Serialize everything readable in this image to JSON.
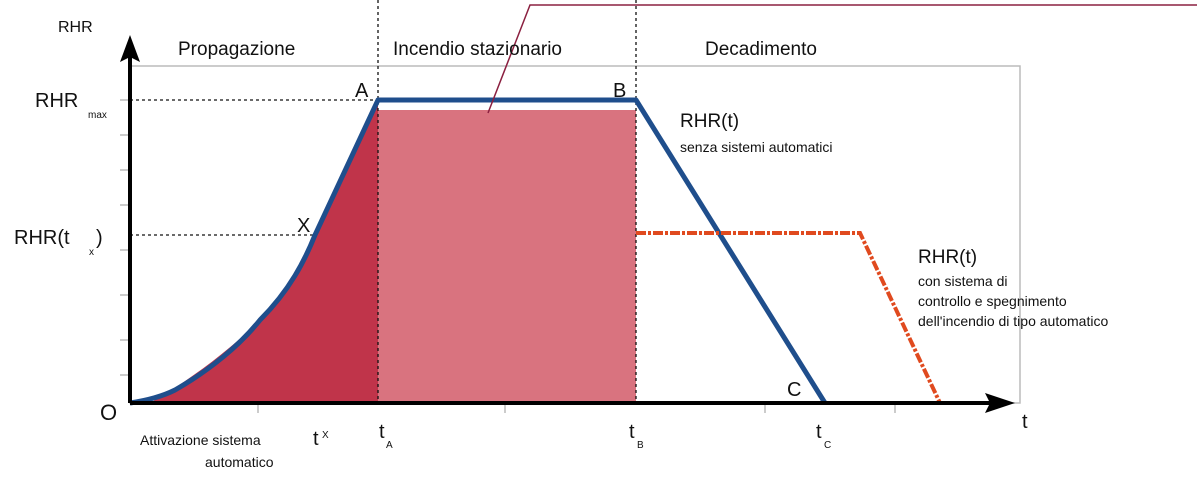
{
  "axes": {
    "y_label": "RHR",
    "x_label": "t",
    "origin": "O"
  },
  "phases": [
    "Propagazione",
    "Incendio stazionario",
    "Decadimento"
  ],
  "points": {
    "a": "A",
    "b": "B",
    "c": "C",
    "x": "X"
  },
  "y_marks": {
    "rhr_max": {
      "main": "RHR",
      "sub": "max"
    },
    "rhr_tx": {
      "main": "RHR(t",
      "sub": "x",
      "end": ")"
    }
  },
  "x_marks": {
    "tx": {
      "main": "t",
      "sub": "X"
    },
    "ta": {
      "main": "t",
      "sub": "A"
    },
    "tb": {
      "main": "t",
      "sub": "B"
    },
    "tc": {
      "main": "t",
      "sub": "C"
    }
  },
  "curve_without": {
    "title": "RHR(t)",
    "lines": [
      "senza sistemi automatici"
    ]
  },
  "curve_with": {
    "title": "RHR(t)",
    "lines": [
      "con sistema di",
      "controllo e spegnimento",
      "dell'incendio di tipo automatico"
    ]
  },
  "activation": [
    "Attivazione sistema",
    "automatico"
  ]
}
